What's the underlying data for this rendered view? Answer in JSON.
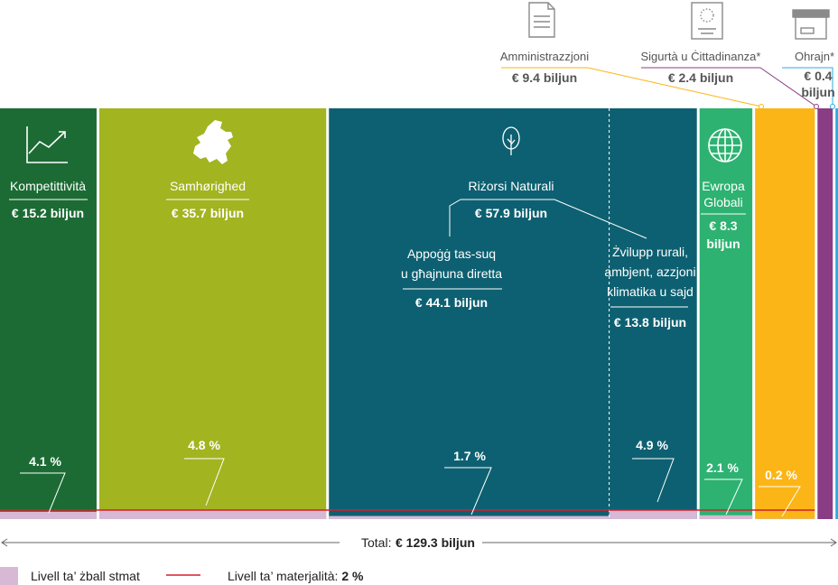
{
  "chart_data": {
    "type": "bar",
    "unit": "biljun",
    "total_label": "Total:",
    "total_value": "€ 129.3 biljun",
    "categories": [
      {
        "name": "Kompetittività",
        "amount": 15.2,
        "amount_label": "€ 15.2 biljun",
        "error_rate": 4.1,
        "error_label": "4.1 %",
        "color": "#1c6b34",
        "icon": "chart-line-icon"
      },
      {
        "name": "Samhørighed",
        "amount": 35.7,
        "amount_label": "€ 35.7 biljun",
        "error_rate": 4.8,
        "error_label": "4.8 %",
        "color": "#a2b420",
        "icon": "europe-map-icon"
      },
      {
        "name": "Riżorsi Naturali",
        "amount": 57.9,
        "amount_label": "€ 57.9 biljun",
        "error_rate": null,
        "color": "#0d6071",
        "icon": "tree-icon",
        "sub": [
          {
            "name_lines": [
              "Appoġġ tas-suq",
              "u għajnuna diretta"
            ],
            "amount": 44.1,
            "amount_label": "€ 44.1 biljun",
            "error_rate": 1.7,
            "error_label": "1.7 %"
          },
          {
            "name_lines": [
              "Żvilupp rurali,",
              "ambjent, azzjoni",
              "klimatika u sajd"
            ],
            "amount": 13.8,
            "amount_label": "€ 13.8 biljun",
            "error_rate": 4.9,
            "error_label": "4.9 %"
          }
        ]
      },
      {
        "name_lines": [
          "Ewropa",
          "Globali"
        ],
        "amount": 8.3,
        "amount_label_lines": [
          "€ 8.3",
          "biljun"
        ],
        "error_rate": 2.1,
        "error_label": "2.1 %",
        "color": "#2db271",
        "icon": "globe-icon"
      },
      {
        "name": "Amministrazzjoni",
        "amount": 9.4,
        "amount_label": "€ 9.4 biljun",
        "error_rate": 0.2,
        "error_label": "0.2 %",
        "color": "#fbb516",
        "icon": "document-icon"
      },
      {
        "name": "Sigurtà u Ċittadinanza*",
        "amount": 2.4,
        "amount_label": "€ 2.4 biljun",
        "error_rate": null,
        "color": "#8a3c85",
        "icon": "eu-passport-icon"
      },
      {
        "name": "Ohrajn*",
        "amount": 0.4,
        "amount_label_lines": [
          "€ 0.4",
          "biljun"
        ],
        "error_rate": null,
        "color": "#28aee4",
        "icon": "archive-box-icon"
      }
    ],
    "materiality_level": 2,
    "ylim": [
      0,
      100
    ],
    "legend": [
      {
        "label": "Livell ta’ żball stmat",
        "color": "#d7b9d6"
      },
      {
        "label": "Livell ta’ materjalità:",
        "value": "2 %",
        "color": "#d81e2c"
      }
    ],
    "legend_position": "bottom-left"
  }
}
